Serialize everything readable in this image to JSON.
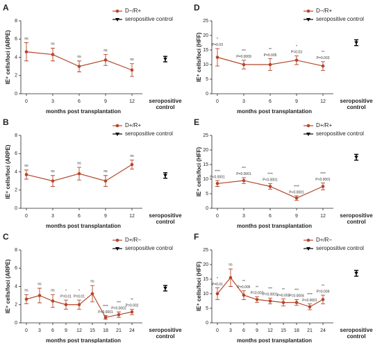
{
  "chart_data": [
    {
      "type": "line",
      "panel": "A",
      "ylabel": "IE⁺ cells/foci (ARPE)",
      "xlabel": "months post transplantation",
      "categories": [
        "0",
        "3",
        "6",
        "9",
        "12"
      ],
      "series": [
        {
          "name": "D−/R+",
          "color": "#b5462a",
          "values": [
            4.6,
            4.3,
            3.0,
            3.7,
            2.6
          ],
          "errors": [
            1.0,
            0.7,
            0.6,
            0.6,
            0.7
          ]
        }
      ],
      "control": {
        "name": "seropositive control",
        "label": [
          "seropositive",
          "control"
        ],
        "color": "#000000",
        "value": 3.8,
        "error": 0.3
      },
      "annotations": [
        {
          "text": "ns"
        },
        {
          "text": "ns"
        },
        {
          "text": "ns"
        },
        {
          "text": "ns"
        },
        {
          "text": "ns"
        }
      ],
      "ylim": [
        0,
        8
      ],
      "yticks": [
        0,
        2,
        4,
        6,
        8
      ]
    },
    {
      "type": "line",
      "panel": "B",
      "ylabel": "IE⁺ cells/foci (ARPE)",
      "xlabel": "months post transplantation",
      "categories": [
        "0",
        "3",
        "6",
        "9",
        "12"
      ],
      "series": [
        {
          "name": "D+/R+",
          "color": "#b5462a",
          "values": [
            3.7,
            3.0,
            3.8,
            3.0,
            4.8
          ],
          "errors": [
            0.5,
            0.6,
            0.7,
            0.6,
            0.5
          ]
        }
      ],
      "control": {
        "name": "seropositive control",
        "label": [
          "seropositive",
          "control"
        ],
        "color": "#000000",
        "value": 3.6,
        "error": 0.3
      },
      "annotations": [
        {
          "text": "ns"
        },
        {
          "text": "ns"
        },
        {
          "text": "ns"
        },
        {
          "text": "ns"
        },
        {
          "text": "ns"
        }
      ],
      "ylim": [
        0,
        8
      ],
      "yticks": [
        0,
        2,
        4,
        6,
        8
      ]
    },
    {
      "type": "line",
      "panel": "C",
      "ylabel": "IE⁺ cells/foci (ARPE)",
      "xlabel": "months post transplantation",
      "categories": [
        "0",
        "3",
        "6",
        "9",
        "12",
        "15",
        "18",
        "21",
        "24"
      ],
      "series": [
        {
          "name": "D+/R−",
          "color": "#b5462a",
          "values": [
            2.6,
            3.0,
            2.4,
            2.0,
            2.0,
            3.2,
            0.6,
            0.9,
            1.2
          ],
          "errors": [
            0.5,
            0.8,
            0.7,
            0.5,
            0.5,
            0.9,
            0.2,
            0.3,
            0.3
          ]
        }
      ],
      "control": {
        "name": "seropositive control",
        "label": [
          "seropositive",
          "control"
        ],
        "color": "#000000",
        "value": 3.8,
        "error": 0.3
      },
      "annotations": [
        {
          "text": "ns"
        },
        {
          "text": "ns"
        },
        {
          "text": "ns"
        },
        {
          "text": "*",
          "p": "P=0.01"
        },
        {
          "text": "*",
          "p": "P=0.01"
        },
        {
          "text": "ns"
        },
        {
          "text": "****",
          "p": "P<0.0001"
        },
        {
          "text": "***",
          "p": "P=0.0002"
        },
        {
          "text": "**",
          "p": "P=0.002"
        }
      ],
      "ylim": [
        0,
        8
      ],
      "yticks": [
        0,
        2,
        4,
        6,
        8
      ]
    },
    {
      "type": "line",
      "panel": "D",
      "ylabel": "IE⁺ cells/foci (HFF)",
      "xlabel": "months post transplantation",
      "categories": [
        "0",
        "3",
        "6",
        "9",
        "12"
      ],
      "series": [
        {
          "name": "D−/R+",
          "color": "#b5462a",
          "values": [
            12.5,
            10,
            10,
            11.5,
            9.5
          ],
          "errors": [
            3,
            1.5,
            2,
            1.5,
            1.5
          ]
        }
      ],
      "control": {
        "name": "seropositive control",
        "label": [
          "seropositive",
          "control"
        ],
        "color": "#000000",
        "value": 17.5,
        "error": 1
      },
      "annotations": [
        {
          "text": "*",
          "p": "P=0.03"
        },
        {
          "text": "***",
          "p": "P=0.0009"
        },
        {
          "text": "**",
          "p": "P=0.005"
        },
        {
          "text": "*",
          "p": "P=0.03"
        },
        {
          "text": "**",
          "p": "P=0.003"
        }
      ],
      "ylim": [
        0,
        25
      ],
      "yticks": [
        0,
        5,
        10,
        15,
        20,
        25
      ]
    },
    {
      "type": "line",
      "panel": "E",
      "ylabel": "IE⁺ cells/foci (HFF)",
      "xlabel": "months post transplantation",
      "categories": [
        "0",
        "3",
        "6",
        "9",
        "12"
      ],
      "series": [
        {
          "name": "D+/R+",
          "color": "#b5462a",
          "values": [
            8.5,
            9.5,
            7.5,
            3.5,
            7.5
          ],
          "errors": [
            1,
            1,
            1,
            0.8,
            1.2
          ]
        }
      ],
      "control": {
        "name": "seropositive control",
        "label": [
          "seropositive",
          "control"
        ],
        "color": "#000000",
        "value": 17.5,
        "error": 1
      },
      "annotations": [
        {
          "text": "****",
          "p": "P<0.0001"
        },
        {
          "text": "***",
          "p": "P=0.0001"
        },
        {
          "text": "****",
          "p": "P<0.0001"
        },
        {
          "text": "****",
          "p": "P<0.0001"
        },
        {
          "text": "****",
          "p": "P<0.0001"
        }
      ],
      "ylim": [
        0,
        25
      ],
      "yticks": [
        0,
        5,
        10,
        15,
        20,
        25
      ]
    },
    {
      "type": "line",
      "panel": "F",
      "ylabel": "IE⁺ cells/foci (HFF)",
      "xlabel": "months post transplantation",
      "categories": [
        "0",
        "3",
        "6",
        "9",
        "12",
        "15",
        "18",
        "21",
        "24"
      ],
      "series": [
        {
          "name": "D+/R−",
          "color": "#b5462a",
          "values": [
            10,
            15.5,
            9.5,
            8,
            7.5,
            7,
            7,
            5.5,
            8
          ],
          "errors": [
            2,
            3,
            1.5,
            1,
            1,
            1.2,
            1,
            1,
            1.5
          ]
        }
      ],
      "control": {
        "name": "seropositive control",
        "label": [
          "seropositive",
          "control"
        ],
        "color": "#000000",
        "value": 17,
        "error": 1
      },
      "annotations": [
        {
          "text": "*",
          "p": "P=0.01"
        },
        {
          "text": "ns"
        },
        {
          "text": "**",
          "p": "P=0.005"
        },
        {
          "text": "**",
          "p": "P=0.002"
        },
        {
          "text": "***",
          "p": "P=0.0001"
        },
        {
          "text": "**",
          "p": "P=0.002"
        },
        {
          "text": "***",
          "p": "P=0.0004"
        },
        {
          "text": "****",
          "p": "P<0.0001"
        },
        {
          "text": "**",
          "p": "P=0.009"
        }
      ],
      "ylim": [
        0,
        25
      ],
      "yticks": [
        0,
        5,
        10,
        15,
        20,
        25
      ]
    }
  ]
}
